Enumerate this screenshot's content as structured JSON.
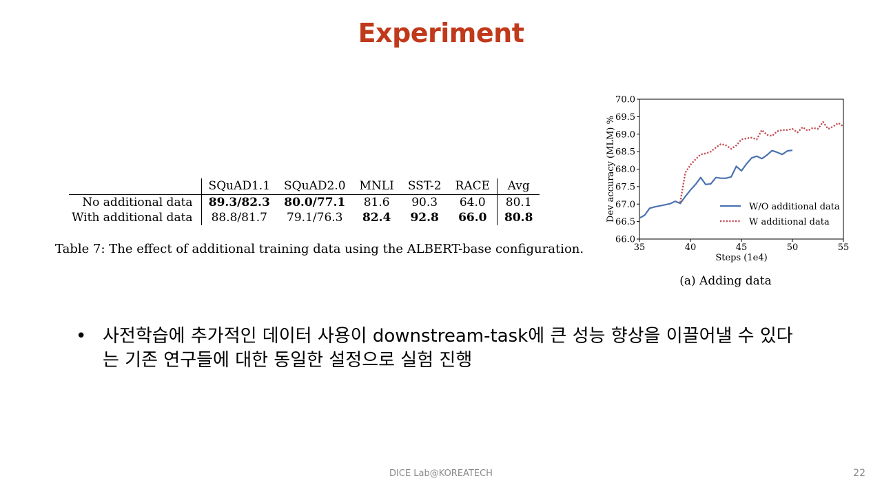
{
  "slide": {
    "title": "Experiment",
    "footer": "DICE  Lab@KOREATECH",
    "page_number": "22"
  },
  "table": {
    "headers": [
      "",
      "SQuAD1.1",
      "SQuAD2.0",
      "MNLI",
      "SST-2",
      "RACE",
      "Avg"
    ],
    "rows": [
      {
        "label": "No additional data",
        "cells": [
          "89.3/82.3",
          "80.0/77.1",
          "81.6",
          "90.3",
          "64.0",
          "80.1"
        ],
        "bold": [
          true,
          true,
          false,
          false,
          false,
          false
        ]
      },
      {
        "label": "With additional data",
        "cells": [
          "88.8/81.7",
          "79.1/76.3",
          "82.4",
          "92.8",
          "66.0",
          "80.8"
        ],
        "bold": [
          false,
          false,
          true,
          true,
          true,
          true
        ]
      }
    ],
    "caption": "Table 7: The effect of additional training data using the ALBERT-base configuration."
  },
  "chart_data": {
    "type": "line",
    "xlabel": "Steps (1e4)",
    "ylabel": "Dev accuracy (MLM) %",
    "xlim": [
      35,
      55
    ],
    "ylim": [
      66.0,
      70.0
    ],
    "xticks": [
      "35",
      "40",
      "45",
      "50",
      "55"
    ],
    "yticks": [
      "66.0",
      "66.5",
      "67.0",
      "67.5",
      "68.0",
      "68.5",
      "69.0",
      "69.5",
      "70.0"
    ],
    "legend_position": "bottom-right",
    "caption": "(a) Adding data",
    "series": [
      {
        "name": "W/O additional data",
        "color": "#4c72b0",
        "style": "solid",
        "x": [
          35,
          35.5,
          36,
          36.5,
          37,
          37.5,
          38,
          38.5,
          39,
          39.5,
          40,
          40.5,
          41,
          41.5,
          42,
          42.5,
          43,
          43.5,
          44,
          44.5,
          45,
          45.5,
          46,
          46.5,
          47,
          47.5,
          48,
          48.5,
          49,
          49.5,
          50
        ],
        "y": [
          66.6,
          66.68,
          66.88,
          66.92,
          66.95,
          66.98,
          67.01,
          67.08,
          67.02,
          67.22,
          67.4,
          67.56,
          67.76,
          67.56,
          67.58,
          67.76,
          67.74,
          67.74,
          67.78,
          68.08,
          67.95,
          68.15,
          68.32,
          68.37,
          68.3,
          68.4,
          68.53,
          68.48,
          68.42,
          68.52,
          68.54
        ]
      },
      {
        "name": "W additional data",
        "color": "#c44e52",
        "style": "dotted",
        "x": [
          39,
          39.5,
          40,
          40.5,
          41,
          41.5,
          42,
          42.5,
          43,
          43.5,
          44,
          44.5,
          45,
          45.5,
          46,
          46.5,
          47,
          47.5,
          48,
          48.5,
          49,
          49.5,
          50,
          50.5,
          51,
          51.5,
          52,
          52.5,
          53,
          53.5,
          54,
          54.5,
          55
        ],
        "y": [
          67.05,
          67.9,
          68.12,
          68.28,
          68.42,
          68.45,
          68.5,
          68.62,
          68.72,
          68.68,
          68.58,
          68.68,
          68.85,
          68.88,
          68.9,
          68.85,
          69.12,
          68.98,
          68.95,
          69.08,
          69.12,
          69.12,
          69.15,
          69.05,
          69.2,
          69.1,
          69.18,
          69.15,
          69.35,
          69.15,
          69.22,
          69.32,
          69.22
        ]
      }
    ]
  },
  "bullet": {
    "text": "사전학습에 추가적인 데이터 사용이 downstream-task에 큰 성능 향상을 이끌어낼 수 있다는 기존 연구들에 대한 동일한 설정으로 실험 진행"
  }
}
